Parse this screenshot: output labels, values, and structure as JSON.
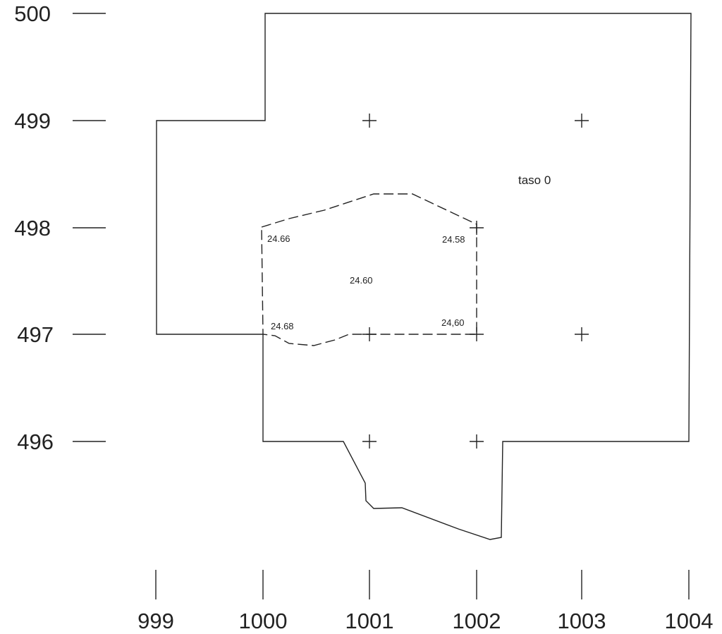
{
  "y_axis": {
    "labels": [
      "500",
      "499",
      "498",
      "497",
      "496"
    ]
  },
  "x_axis": {
    "labels": [
      "999",
      "1000",
      "1001",
      "1002",
      "1003",
      "1004"
    ]
  },
  "plan": {
    "label": "taso 0",
    "elevations": [
      "24.66",
      "24.58",
      "24.60",
      "24.68",
      "24,60"
    ]
  }
}
